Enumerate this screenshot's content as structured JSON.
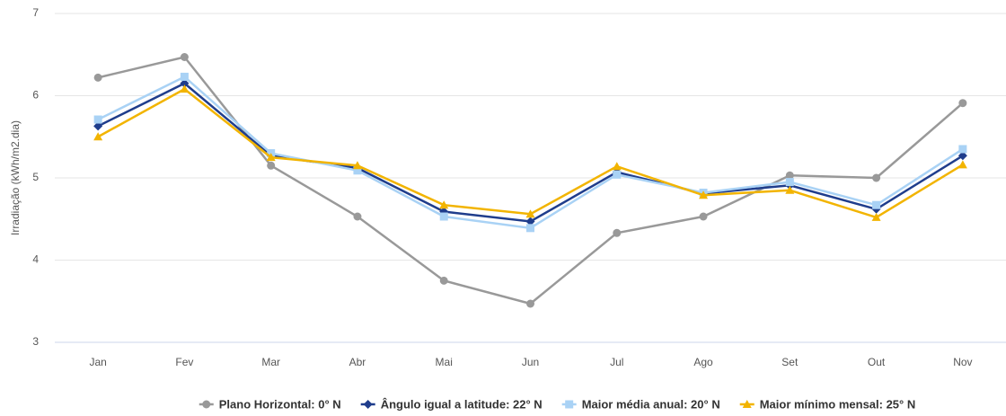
{
  "chart_data": {
    "type": "line",
    "y_label": "Irradiação (kWh/m2.dia)",
    "categories": [
      "Jan",
      "Fev",
      "Mar",
      "Abr",
      "Mai",
      "Jun",
      "Jul",
      "Ago",
      "Set",
      "Out",
      "Nov"
    ],
    "series": [
      {
        "name": "Plano Horizontal: 0° N",
        "color": "#999999",
        "marker": "circle",
        "values": [
          6.22,
          6.47,
          5.15,
          4.53,
          3.75,
          3.47,
          4.33,
          4.53,
          5.03,
          5.0,
          5.91
        ]
      },
      {
        "name": "Ângulo igual a latitude: 22° N",
        "color": "#1f3d8c",
        "marker": "diamond",
        "values": [
          5.63,
          6.15,
          5.27,
          5.12,
          4.59,
          4.47,
          5.07,
          4.81,
          4.91,
          4.62,
          5.27
        ]
      },
      {
        "name": "Maior média anual: 20° N",
        "color": "#a9d2f5",
        "marker": "square",
        "values": [
          5.71,
          6.23,
          5.3,
          5.09,
          4.53,
          4.39,
          5.04,
          4.82,
          4.95,
          4.67,
          5.35
        ]
      },
      {
        "name": "Maior mínimo mensal: 25° N",
        "color": "#f2b400",
        "marker": "triangle",
        "values": [
          5.5,
          6.08,
          5.25,
          5.15,
          4.67,
          4.56,
          5.14,
          4.79,
          4.85,
          4.52,
          5.16
        ]
      }
    ],
    "ylim": [
      3,
      7
    ],
    "yticks": [
      3,
      4,
      5,
      6,
      7
    ],
    "grid": true,
    "legend": "bottom"
  }
}
